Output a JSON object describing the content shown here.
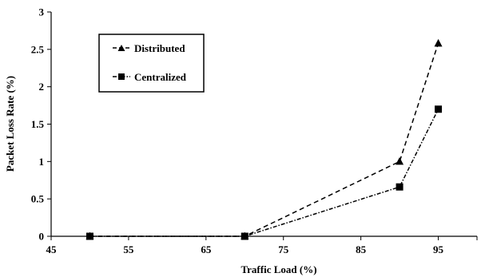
{
  "chart_data": {
    "type": "line",
    "xlabel": "Traffic Load  (%)",
    "ylabel": "Packet Loss Rate (%)",
    "xlim": [
      45,
      100
    ],
    "ylim": [
      0,
      3
    ],
    "xticks": [
      45,
      55,
      65,
      75,
      85,
      95
    ],
    "xtick_labels": [
      "45",
      "55",
      "65",
      "75",
      "85",
      "95"
    ],
    "yticks": [
      0,
      0.5,
      1,
      1.5,
      2,
      2.5,
      3
    ],
    "ytick_labels": [
      "0",
      "0.5",
      "1",
      "1.5",
      "2",
      "2.5",
      "3"
    ],
    "grid": false,
    "legend_position": "top-left",
    "series": [
      {
        "name": "Distributed",
        "marker": "triangle",
        "line_style": "dashed",
        "color": "#000000",
        "x": [
          50,
          70,
          90,
          95
        ],
        "y": [
          0,
          0,
          1.0,
          2.58
        ]
      },
      {
        "name": "Centralized",
        "marker": "square",
        "line_style": "dash-dot",
        "color": "#000000",
        "x": [
          50,
          70,
          90,
          95
        ],
        "y": [
          0,
          0,
          0.66,
          1.7
        ]
      }
    ]
  }
}
